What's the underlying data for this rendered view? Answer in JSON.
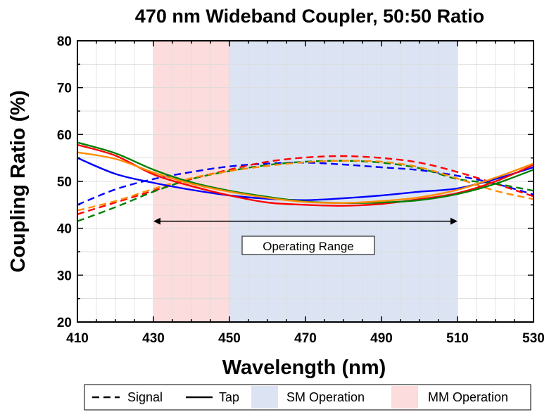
{
  "chart_data": {
    "type": "line",
    "title": "470 nm Wideband Coupler, 50:50 Ratio",
    "xlabel": "Wavelength (nm)",
    "ylabel": "Coupling Ratio (%)",
    "xlim": [
      410,
      530
    ],
    "ylim": [
      20,
      80
    ],
    "x_ticks": [
      "410",
      "430",
      "450",
      "470",
      "490",
      "510",
      "530"
    ],
    "y_ticks": [
      "20",
      "30",
      "40",
      "50",
      "60",
      "70",
      "80"
    ],
    "grid": true,
    "bands": [
      {
        "label": "MM Operation",
        "x_start": 430,
        "x_end": 450,
        "color": "#fcdcdc"
      },
      {
        "label": "SM Operation",
        "x_start": 450,
        "x_end": 510,
        "color": "#dce4f4"
      }
    ],
    "annotation": {
      "text": "Operating Range",
      "x_start": 430,
      "x_end": 510,
      "y": 41.5
    },
    "legend": {
      "position": "bottom",
      "items": [
        {
          "label": "Signal",
          "style": "dashed"
        },
        {
          "label": "Tap",
          "style": "solid"
        },
        {
          "label": "SM Operation",
          "style": "swatch",
          "color": "#dce4f4"
        },
        {
          "label": "MM Operation",
          "style": "swatch",
          "color": "#fcdcdc"
        }
      ]
    },
    "x": [
      410,
      420,
      430,
      440,
      450,
      460,
      470,
      480,
      490,
      500,
      510,
      520,
      530
    ],
    "series": [
      {
        "color": "#0000ff",
        "style": "dashed",
        "values": [
          45.0,
          48.3,
          50.5,
          52.0,
          53.2,
          53.8,
          54.0,
          53.6,
          53.0,
          52.4,
          51.2,
          49.5,
          47.2
        ]
      },
      {
        "color": "#ff0000",
        "style": "dashed",
        "values": [
          43.0,
          45.5,
          48.0,
          50.5,
          52.5,
          54.2,
          55.1,
          55.4,
          55.0,
          54.0,
          52.0,
          49.5,
          46.8
        ]
      },
      {
        "color": "#008000",
        "style": "dashed",
        "values": [
          41.5,
          44.5,
          47.8,
          50.5,
          52.2,
          53.5,
          54.2,
          54.4,
          54.0,
          52.8,
          50.5,
          49.5,
          48.0
        ]
      },
      {
        "color": "#ff8c00",
        "style": "dashed",
        "values": [
          43.8,
          45.8,
          48.4,
          50.7,
          52.2,
          53.3,
          54.1,
          54.4,
          54.2,
          53.0,
          50.6,
          48.0,
          46.2
        ]
      },
      {
        "color": "#0000ff",
        "style": "solid",
        "values": [
          55.0,
          51.6,
          49.7,
          48.2,
          47.0,
          46.3,
          46.0,
          46.4,
          47.0,
          47.8,
          48.5,
          50.5,
          53.0
        ]
      },
      {
        "color": "#ff0000",
        "style": "solid",
        "values": [
          57.8,
          55.5,
          51.5,
          49.0,
          47.0,
          45.5,
          45.0,
          44.8,
          45.2,
          46.2,
          47.5,
          50.0,
          53.5
        ]
      },
      {
        "color": "#008000",
        "style": "solid",
        "values": [
          58.3,
          56.0,
          52.5,
          49.8,
          48.0,
          46.7,
          45.7,
          45.4,
          45.5,
          46.0,
          47.3,
          49.5,
          52.5
        ]
      },
      {
        "color": "#ff8c00",
        "style": "solid",
        "values": [
          56.2,
          54.8,
          51.9,
          49.5,
          47.8,
          46.5,
          45.6,
          45.4,
          45.8,
          46.6,
          48.2,
          50.8,
          53.8
        ]
      }
    ]
  }
}
